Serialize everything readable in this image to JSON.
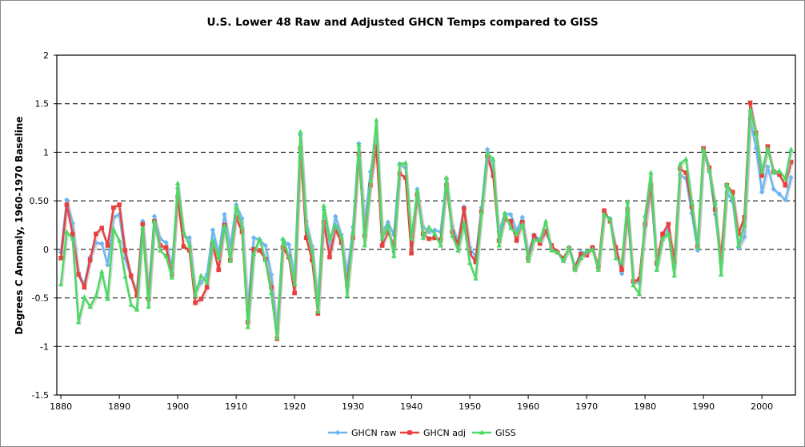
{
  "chart_data": {
    "type": "line",
    "title": "U.S. Lower 48 Raw and Adjusted GHCN Temps compared to GISS",
    "xlabel": "",
    "ylabel": "Degrees C Anomaly, 1960-1970 Baseline",
    "xlim": [
      1880,
      2005
    ],
    "ylim": [
      -1.5,
      2
    ],
    "yticks": [
      "2",
      "1.5",
      "1",
      "0.50",
      "0",
      "-0.5",
      "-1",
      "-1.5"
    ],
    "ytick_values": [
      2,
      1.5,
      1,
      0.5,
      0,
      -0.5,
      -1,
      -1.5
    ],
    "xticks": [
      "1880",
      "1890",
      "1900",
      "1910",
      "1920",
      "1930",
      "1940",
      "1950",
      "1960",
      "1970",
      "1980",
      "1990",
      "2000"
    ],
    "grid": "horizontal dashed",
    "legend_position": "bottom",
    "x_start": 1880,
    "series": [
      {
        "name": "GHCN raw",
        "color": "#6cb6f4",
        "marker": "diamond",
        "values": [
          -0.03,
          0.51,
          0.27,
          -0.24,
          -0.36,
          -0.08,
          0.07,
          0.06,
          -0.16,
          0.33,
          0.36,
          -0.09,
          -0.29,
          -0.43,
          0.29,
          -0.45,
          0.34,
          0.11,
          0.07,
          -0.19,
          0.63,
          0.14,
          0.12,
          -0.41,
          -0.34,
          -0.26,
          0.2,
          -0.05,
          0.36,
          0.02,
          0.46,
          0.32,
          -0.62,
          0.12,
          0.1,
          0.04,
          -0.26,
          -0.81,
          0.1,
          0.05,
          -0.29,
          1.18,
          0.29,
          0.03,
          -0.52,
          0.41,
          0.03,
          0.34,
          0.15,
          -0.25,
          0.23,
          1.09,
          0.26,
          0.8,
          1.13,
          0.18,
          0.28,
          0.15,
          0.88,
          0.84,
          0.04,
          0.62,
          0.23,
          0.18,
          0.2,
          0.18,
          0.73,
          0.24,
          0.08,
          0.44,
          0.02,
          -0.08,
          0.43,
          1.03,
          0.8,
          0.18,
          0.37,
          0.36,
          0.19,
          0.33,
          -0.04,
          0.15,
          0.1,
          0.19,
          0.01,
          -0.03,
          -0.11,
          0.02,
          -0.18,
          -0.03,
          -0.03,
          0.02,
          -0.19,
          0.36,
          0.32,
          0.0,
          -0.25,
          0.38,
          -0.34,
          -0.34,
          0.23,
          0.63,
          -0.16,
          0.13,
          0.21,
          -0.18,
          0.77,
          0.73,
          0.37,
          -0.01,
          1.01,
          0.8,
          0.36,
          -0.14,
          0.59,
          0.49,
          0.02,
          0.13,
          1.34,
          1.04,
          0.59,
          0.85,
          0.62,
          0.57,
          0.51,
          0.74
        ]
      },
      {
        "name": "GHCN adj",
        "color": "#e8403f",
        "marker": "square",
        "values": [
          -0.09,
          0.46,
          0.16,
          -0.26,
          -0.39,
          -0.11,
          0.16,
          0.22,
          0.04,
          0.43,
          0.46,
          -0.01,
          -0.27,
          -0.48,
          0.26,
          -0.51,
          0.29,
          0.04,
          0.02,
          -0.26,
          0.54,
          0.03,
          -0.01,
          -0.55,
          -0.51,
          -0.39,
          0.05,
          -0.21,
          0.25,
          -0.11,
          0.33,
          0.18,
          -0.75,
          0.0,
          -0.01,
          -0.1,
          -0.39,
          -0.92,
          0.02,
          -0.08,
          -0.45,
          1.04,
          0.12,
          -0.11,
          -0.66,
          0.28,
          -0.08,
          0.21,
          0.07,
          -0.36,
          0.12,
          0.98,
          0.14,
          0.66,
          1.06,
          0.04,
          0.18,
          0.04,
          0.78,
          0.74,
          -0.04,
          0.56,
          0.16,
          0.11,
          0.12,
          0.1,
          0.66,
          0.18,
          0.05,
          0.42,
          -0.04,
          -0.13,
          0.39,
          0.96,
          0.76,
          0.09,
          0.31,
          0.29,
          0.09,
          0.28,
          -0.09,
          0.14,
          0.06,
          0.19,
          0.04,
          -0.03,
          -0.09,
          0.01,
          -0.19,
          -0.05,
          -0.06,
          0.02,
          -0.18,
          0.4,
          0.29,
          0.02,
          -0.21,
          0.41,
          -0.33,
          -0.31,
          0.26,
          0.66,
          -0.14,
          0.16,
          0.26,
          -0.13,
          0.83,
          0.79,
          0.44,
          0.03,
          1.04,
          0.84,
          0.41,
          -0.09,
          0.66,
          0.59,
          0.16,
          0.33,
          1.51,
          1.2,
          0.76,
          1.06,
          0.8,
          0.77,
          0.66,
          0.9
        ]
      },
      {
        "name": "GISS",
        "color": "#4cd964",
        "marker": "triangle",
        "values": [
          -0.36,
          0.18,
          0.11,
          -0.75,
          -0.49,
          -0.59,
          -0.48,
          -0.23,
          -0.51,
          0.21,
          0.09,
          -0.28,
          -0.57,
          -0.62,
          0.22,
          -0.59,
          0.29,
          -0.01,
          -0.07,
          -0.29,
          0.68,
          0.18,
          0.04,
          -0.47,
          -0.27,
          -0.34,
          0.09,
          -0.09,
          0.24,
          -0.12,
          0.44,
          0.23,
          -0.8,
          -0.05,
          0.11,
          -0.11,
          -0.45,
          -0.91,
          0.11,
          -0.07,
          -0.36,
          1.21,
          0.21,
          -0.01,
          -0.64,
          0.45,
          0.11,
          0.25,
          0.13,
          -0.48,
          0.18,
          1.08,
          0.04,
          0.71,
          1.33,
          0.11,
          0.25,
          -0.07,
          0.88,
          0.89,
          0.11,
          0.6,
          0.12,
          0.23,
          0.16,
          0.04,
          0.74,
          0.14,
          -0.01,
          0.27,
          -0.14,
          -0.3,
          0.38,
          0.99,
          0.93,
          0.04,
          0.37,
          0.22,
          0.16,
          0.26,
          -0.12,
          0.1,
          0.09,
          0.29,
          -0.01,
          -0.03,
          -0.12,
          0.02,
          -0.21,
          -0.09,
          -0.02,
          0.0,
          -0.21,
          0.36,
          0.31,
          -0.09,
          -0.14,
          0.49,
          -0.37,
          -0.46,
          0.35,
          0.79,
          -0.21,
          0.11,
          0.16,
          -0.27,
          0.88,
          0.93,
          0.48,
          0.02,
          1.03,
          0.81,
          0.48,
          -0.26,
          0.67,
          0.54,
          0.04,
          0.25,
          1.44,
          1.19,
          0.8,
          1.04,
          0.79,
          0.81,
          0.73,
          1.03
        ]
      }
    ]
  }
}
